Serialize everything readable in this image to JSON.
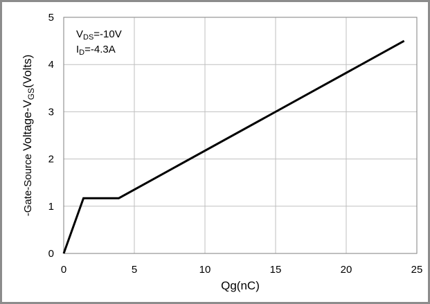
{
  "chart_data": {
    "type": "line",
    "title": "",
    "xlabel": "Qg(nC)",
    "ylabel": {
      "prefix_small": "-Gate-Source ",
      "main": "Voltage-V",
      "sub": "GS",
      "suffix": "(Volts)"
    },
    "xlim": [
      0,
      25
    ],
    "ylim": [
      0,
      5
    ],
    "x_ticks": [
      0,
      5,
      10,
      15,
      20,
      25
    ],
    "y_ticks": [
      0,
      1,
      2,
      3,
      4,
      5
    ],
    "grid": true,
    "annotations": [
      {
        "main": "V",
        "sub": "DS",
        "rest": "=-10V"
      },
      {
        "main": "I",
        "sub": "D",
        "rest": "=-4.3A"
      }
    ],
    "series": [
      {
        "x": [
          0,
          1.4,
          3.9,
          24.1
        ],
        "y": [
          0,
          1.17,
          1.17,
          4.5
        ]
      }
    ]
  },
  "colors": {
    "line": "#000000",
    "grid": "#bfbfbf",
    "frame": "#8c8c8c"
  }
}
